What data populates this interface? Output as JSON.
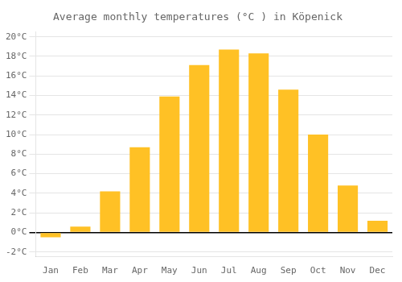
{
  "chart_data": {
    "type": "bar",
    "title": "Average monthly temperatures (°C ) in Köpenick",
    "categories": [
      "Jan",
      "Feb",
      "Mar",
      "Apr",
      "May",
      "Jun",
      "Jul",
      "Aug",
      "Sep",
      "Oct",
      "Nov",
      "Dec"
    ],
    "values": [
      -0.5,
      0.6,
      4.2,
      8.7,
      13.9,
      17.1,
      18.7,
      18.3,
      14.6,
      10.0,
      4.8,
      1.2
    ],
    "color": "#FFC125",
    "ylim": [
      -2.5,
      20.5
    ],
    "yticks": [
      {
        "value": -2,
        "label": "-2°C"
      },
      {
        "value": 0,
        "label": "0°C"
      },
      {
        "value": 2,
        "label": "2°C"
      },
      {
        "value": 4,
        "label": "4°C"
      },
      {
        "value": 6,
        "label": "6°C"
      },
      {
        "value": 8,
        "label": "8°C"
      },
      {
        "value": 10,
        "label": "10°C"
      },
      {
        "value": 12,
        "label": "12°C"
      },
      {
        "value": 14,
        "label": "14°C"
      },
      {
        "value": 16,
        "label": "16°C"
      },
      {
        "value": 18,
        "label": "18°C"
      },
      {
        "value": 20,
        "label": "20°C"
      }
    ],
    "grid": true
  }
}
